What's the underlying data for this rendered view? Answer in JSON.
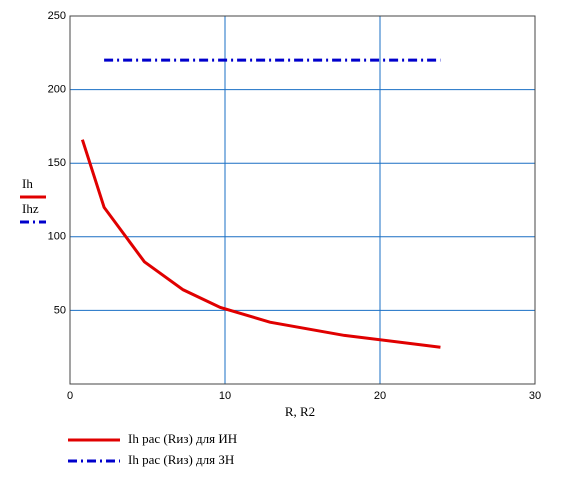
{
  "chart_data": {
    "type": "line",
    "x_label": "R, R2",
    "y_labels": [
      "Ih",
      "Ihz"
    ],
    "xlim": [
      0,
      30
    ],
    "xticks": [
      0,
      10,
      20,
      30
    ],
    "ylim": [
      0,
      250
    ],
    "yticks": [
      50,
      100,
      150,
      200,
      250
    ],
    "grid": true,
    "grid_color": "#1a6fc4",
    "series": [
      {
        "name": "Ih рас (Rиз) для ИН",
        "color": "#e00000",
        "style": "solid",
        "x": [
          0.8,
          2.2,
          4.8,
          7.3,
          9.7,
          12.9,
          17.7,
          23.9
        ],
        "values": [
          166,
          120,
          83,
          64,
          52,
          42,
          33,
          25
        ]
      },
      {
        "name": "Ih рас (Rиз) для ЗН",
        "color": "#0000cc",
        "style": "dashdot",
        "x": [
          2.2,
          23.9
        ],
        "values": [
          220,
          220
        ]
      }
    ]
  }
}
